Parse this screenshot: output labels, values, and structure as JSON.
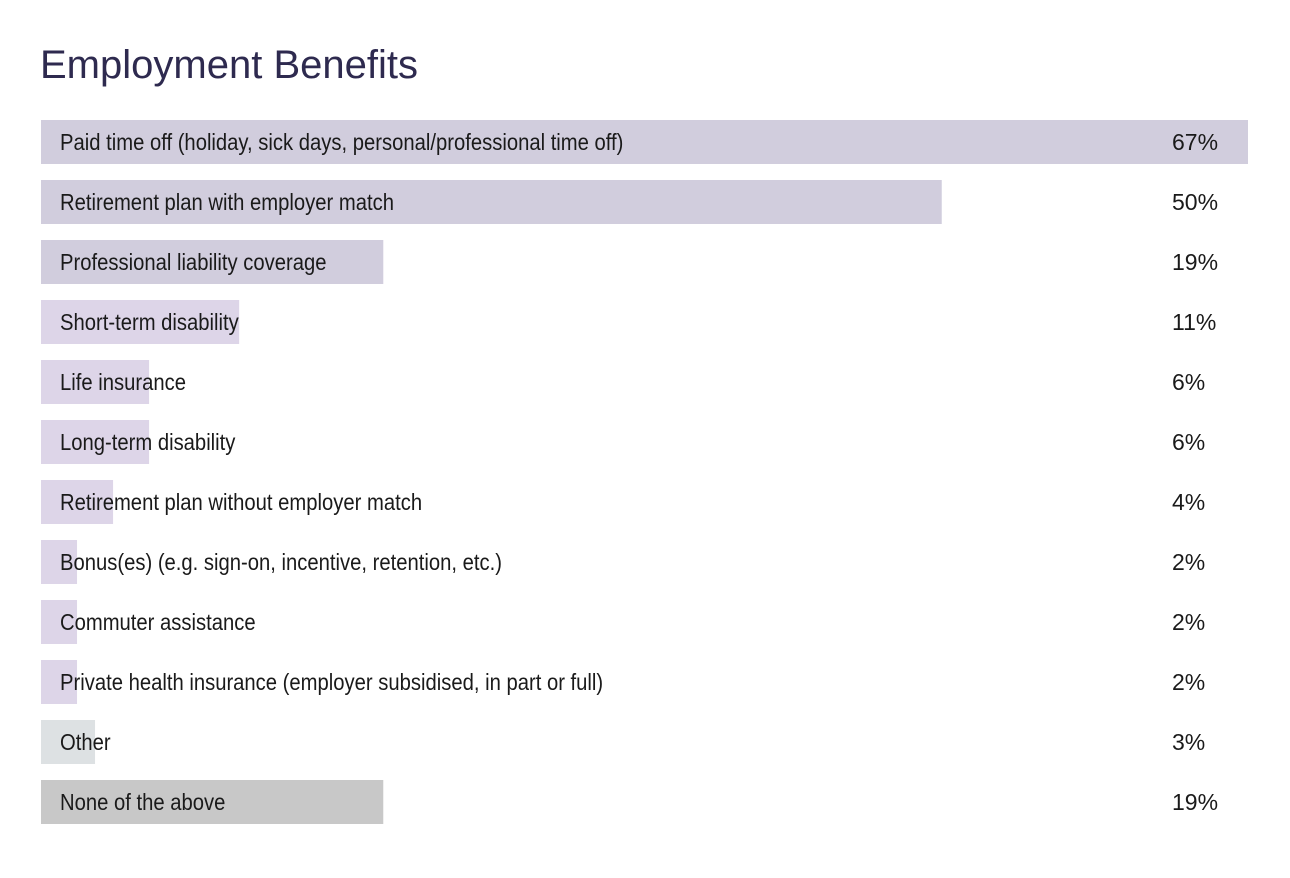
{
  "chart_data": {
    "type": "bar",
    "orientation": "horizontal",
    "title": "Employment Benefits",
    "categories": [
      "Paid time off (holiday, sick days, personal/professional time off)",
      "Retirement plan with employer match",
      "Professional liability coverage",
      "Short-term disability",
      "Life insurance",
      "Long-term disability",
      "Retirement plan without employer match",
      "Bonus(es) (e.g. sign-on, incentive, retention, etc.)",
      "Commuter assistance",
      "Private health insurance (employer subsidised, in part or full)",
      "Other",
      "None of the above"
    ],
    "values": [
      67,
      50,
      19,
      11,
      6,
      6,
      4,
      2,
      2,
      2,
      3,
      19
    ],
    "value_labels": [
      "67%",
      "50%",
      "19%",
      "11%",
      "6%",
      "6%",
      "4%",
      "2%",
      "2%",
      "2%",
      "3%",
      "19%"
    ],
    "colors": [
      "#d1cddd",
      "#d1cddd",
      "#d1cddd",
      "#ddd5e8",
      "#ddd5e8",
      "#ddd5e8",
      "#ddd5e8",
      "#ddd5e8",
      "#ddd5e8",
      "#ddd5e8",
      "#dde1e3",
      "#c8c8c8"
    ],
    "xlim": [
      0,
      67
    ]
  }
}
